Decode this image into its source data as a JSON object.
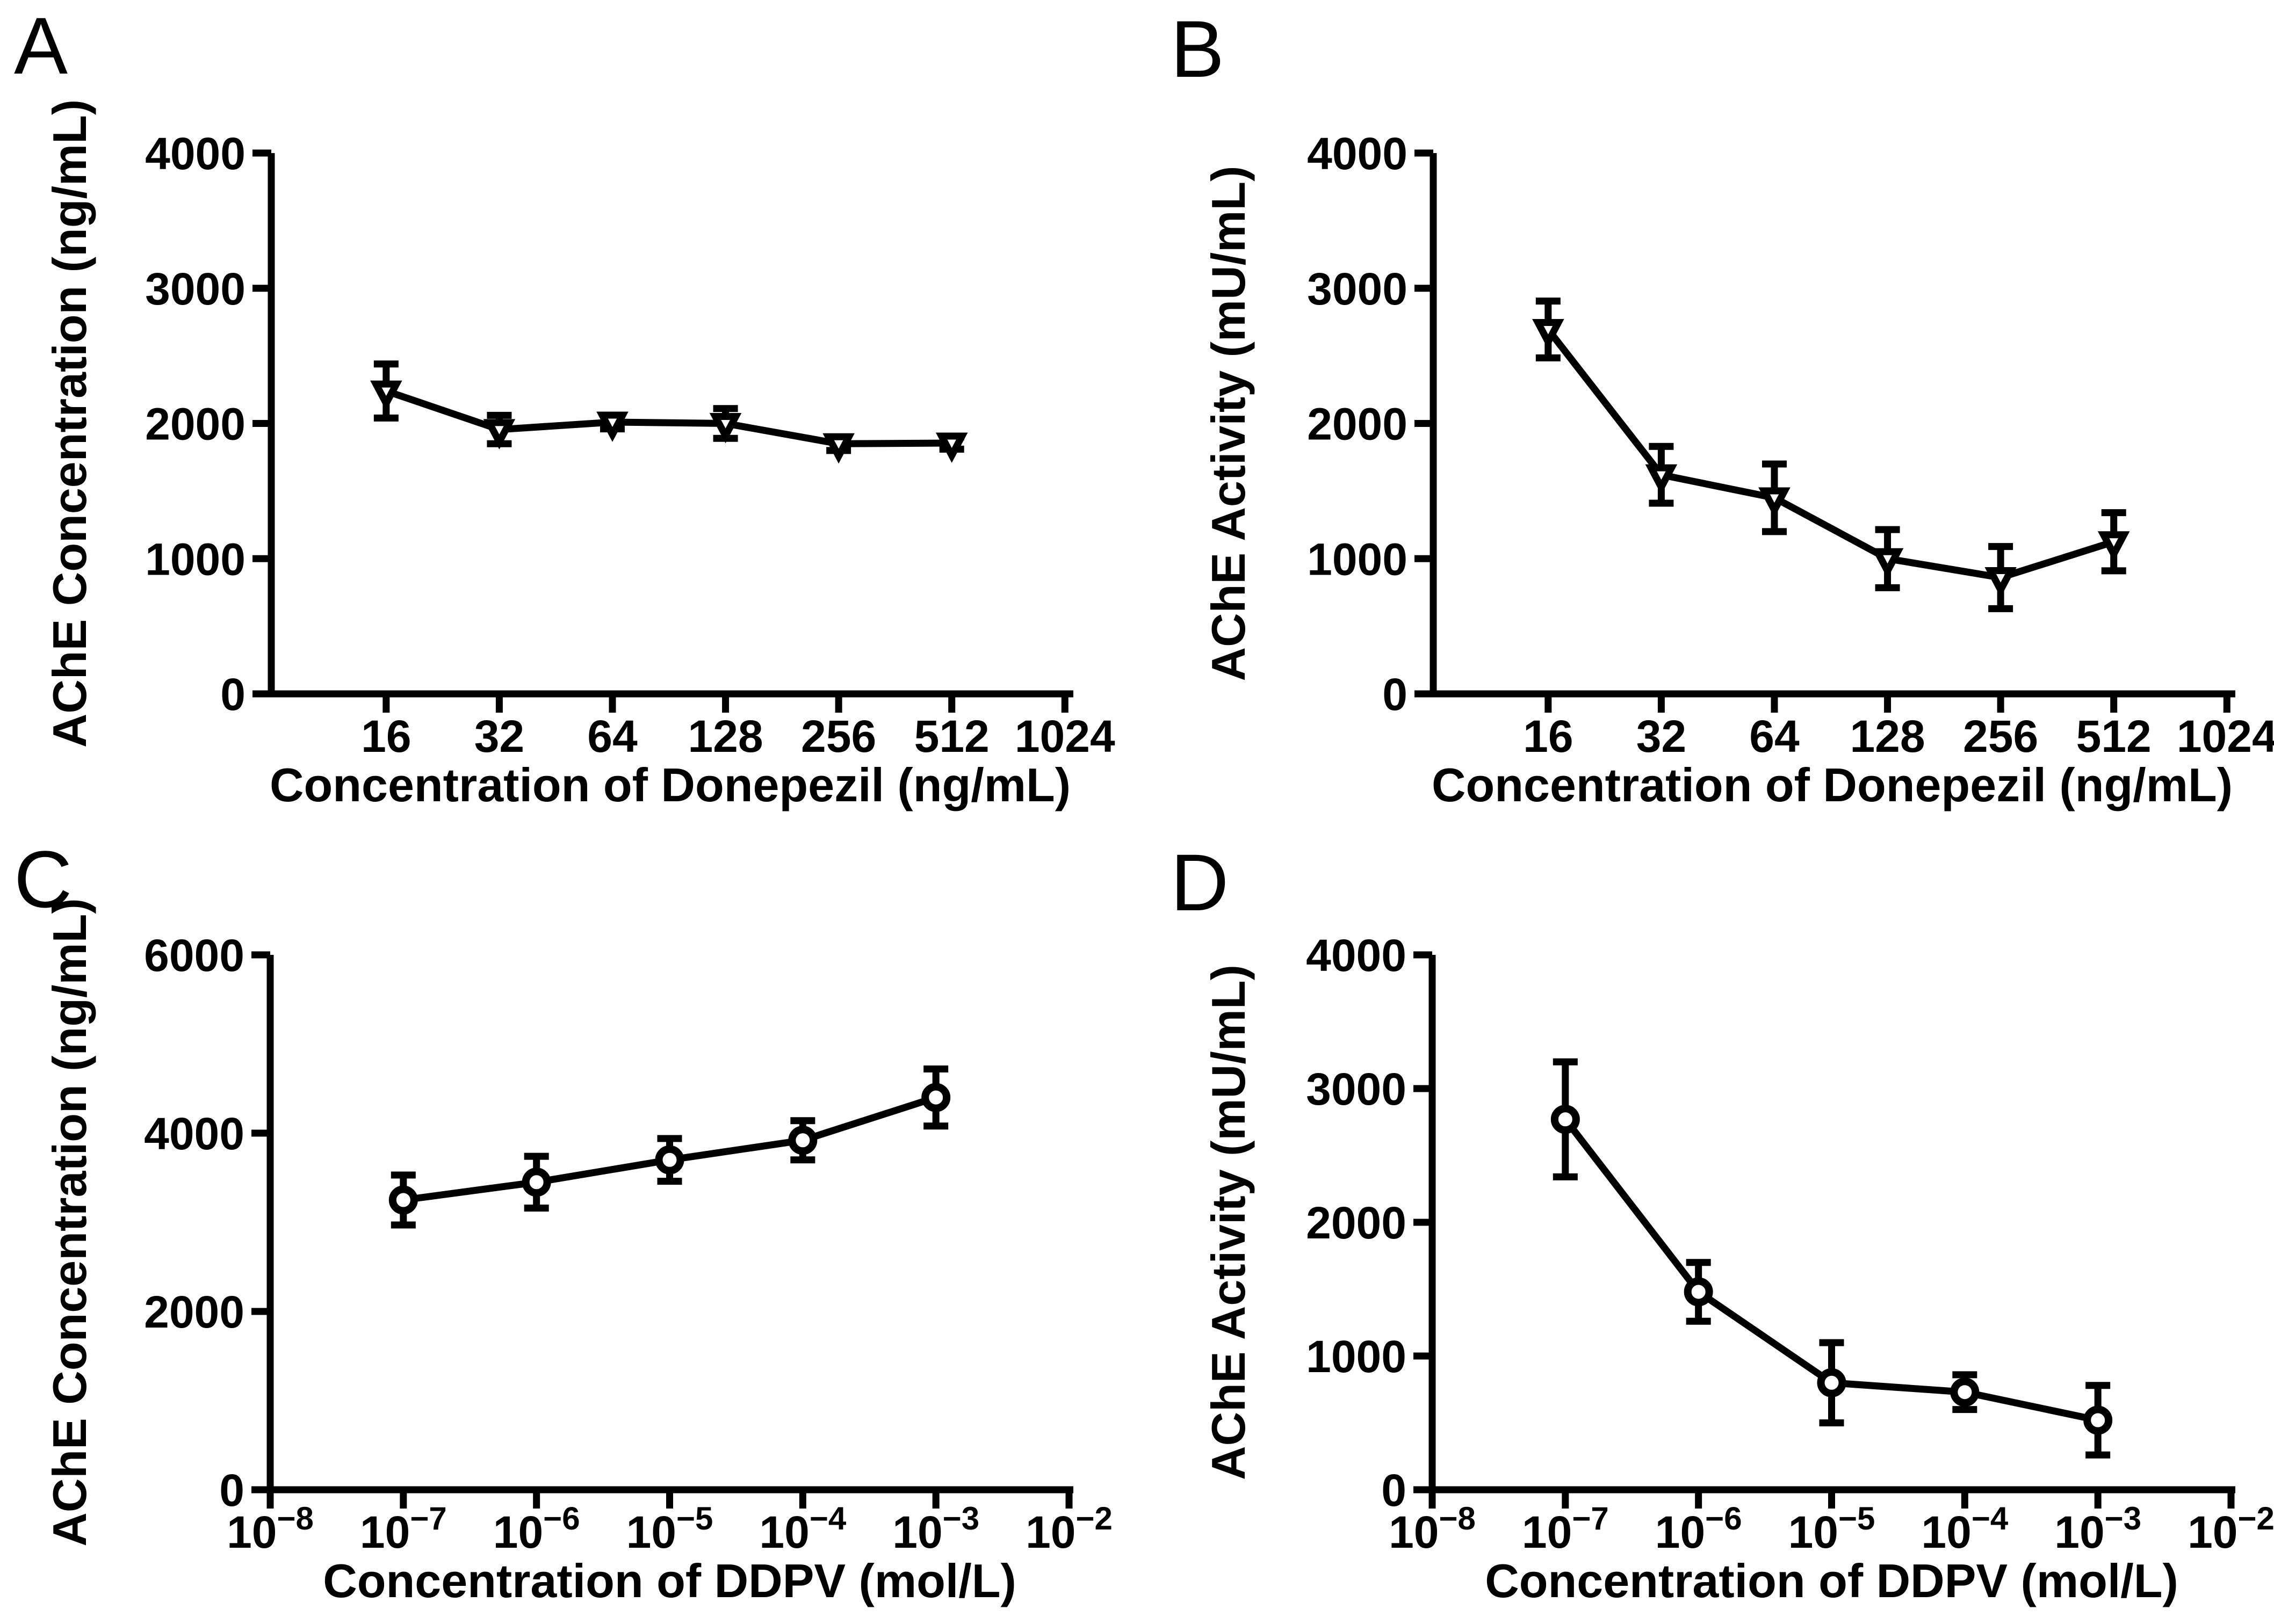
{
  "figure": {
    "background": "#ffffff",
    "foreground": "#000000"
  },
  "chart_data": [
    {
      "type": "line",
      "panel_label": "A",
      "marker": "triangle-down",
      "xlabel": "Concentration of Donepezil (ng/mL)",
      "ylabel": "AChE Concentration (ng/mL)",
      "x_scale": "log2-categorical",
      "x_ticks": [
        "16",
        "32",
        "64",
        "128",
        "256",
        "512",
        "1024"
      ],
      "ylim": [
        0,
        4000
      ],
      "y_ticks": [
        0,
        1000,
        2000,
        3000,
        4000
      ],
      "grid": false,
      "legend": false,
      "points": [
        {
          "x": "16",
          "y": 2240,
          "err": 200
        },
        {
          "x": "32",
          "y": 1955,
          "err": 105
        },
        {
          "x": "64",
          "y": 2010,
          "err": 50
        },
        {
          "x": "128",
          "y": 2000,
          "err": 110
        },
        {
          "x": "256",
          "y": 1850,
          "err": 50
        },
        {
          "x": "512",
          "y": 1855,
          "err": 45
        }
      ]
    },
    {
      "type": "line",
      "panel_label": "B",
      "marker": "triangle-down",
      "xlabel": "Concentration of Donepezil (ng/mL)",
      "ylabel": "AChE Activity (mU/mL)",
      "x_scale": "log2-categorical",
      "x_ticks": [
        "16",
        "32",
        "64",
        "128",
        "256",
        "512",
        "1024"
      ],
      "ylim": [
        0,
        4000
      ],
      "y_ticks": [
        0,
        1000,
        2000,
        3000,
        4000
      ],
      "grid": false,
      "legend": false,
      "points": [
        {
          "x": "16",
          "y": 2695,
          "err": 210
        },
        {
          "x": "32",
          "y": 1620,
          "err": 210
        },
        {
          "x": "64",
          "y": 1450,
          "err": 250
        },
        {
          "x": "128",
          "y": 1000,
          "err": 215
        },
        {
          "x": "256",
          "y": 860,
          "err": 230
        },
        {
          "x": "512",
          "y": 1125,
          "err": 215
        }
      ]
    },
    {
      "type": "line",
      "panel_label": "C",
      "marker": "circle",
      "xlabel": "Concentration of DDPV (mol/L)",
      "ylabel": "AChE Concentration (ng/mL)",
      "x_scale": "log10",
      "x_ticks": [
        "10^-8",
        "10^-7",
        "10^-6",
        "10^-5",
        "10^-4",
        "10^-3",
        "10^-2"
      ],
      "ylim": [
        0,
        6000
      ],
      "y_ticks": [
        0,
        2000,
        4000,
        6000
      ],
      "grid": false,
      "legend": false,
      "points": [
        {
          "x": "10^-7",
          "y": 3250,
          "err": 280
        },
        {
          "x": "10^-6",
          "y": 3450,
          "err": 290
        },
        {
          "x": "10^-5",
          "y": 3700,
          "err": 240
        },
        {
          "x": "10^-4",
          "y": 3920,
          "err": 220
        },
        {
          "x": "10^-3",
          "y": 4400,
          "err": 320
        }
      ]
    },
    {
      "type": "line",
      "panel_label": "D",
      "marker": "circle",
      "xlabel": "Concentration of DDPV (mol/L)",
      "ylabel": "AChE Activity (mU/mL)",
      "x_scale": "log10",
      "x_ticks": [
        "10^-8",
        "10^-7",
        "10^-6",
        "10^-5",
        "10^-4",
        "10^-3",
        "10^-2"
      ],
      "ylim": [
        0,
        4000
      ],
      "y_ticks": [
        0,
        1000,
        2000,
        3000,
        4000
      ],
      "grid": false,
      "legend": false,
      "points": [
        {
          "x": "10^-7",
          "y": 2770,
          "err": 430
        },
        {
          "x": "10^-6",
          "y": 1480,
          "err": 220
        },
        {
          "x": "10^-5",
          "y": 800,
          "err": 300
        },
        {
          "x": "10^-4",
          "y": 730,
          "err": 130
        },
        {
          "x": "10^-3",
          "y": 520,
          "err": 260
        }
      ]
    }
  ]
}
